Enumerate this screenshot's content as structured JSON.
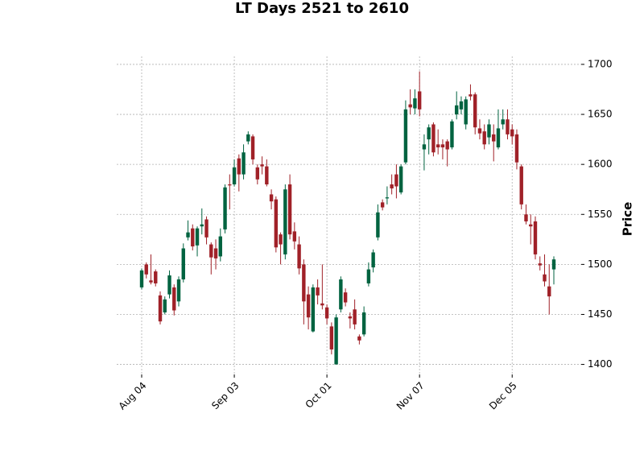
{
  "chart_data": {
    "type": "candlestick",
    "title": "LT Days 2521 to 2610",
    "ylabel": "Price",
    "categories": [
      "Aug 04",
      null,
      null,
      null,
      null,
      null,
      null,
      null,
      null,
      null,
      null,
      null,
      null,
      null,
      null,
      null,
      null,
      null,
      null,
      null,
      "Sep 03",
      null,
      null,
      null,
      null,
      null,
      null,
      null,
      null,
      null,
      null,
      null,
      null,
      null,
      null,
      null,
      null,
      null,
      null,
      null,
      "Oct 01",
      null,
      null,
      null,
      null,
      null,
      null,
      null,
      null,
      null,
      null,
      null,
      null,
      null,
      null,
      null,
      null,
      null,
      null,
      null,
      "Nov 07",
      null,
      null,
      null,
      null,
      null,
      null,
      null,
      null,
      null,
      null,
      null,
      null,
      null,
      null,
      null,
      null,
      null,
      null,
      null,
      "Dec 05",
      null,
      null,
      null,
      null,
      null,
      null,
      null,
      null,
      null
    ],
    "open": [
      1477,
      1500,
      1484,
      1493,
      1469,
      1452,
      1470,
      1477,
      1463,
      1485,
      1527,
      1536,
      1519,
      1538,
      1545,
      1520,
      1516,
      1508,
      1535,
      1580,
      1580,
      1606,
      1590,
      1623,
      1628,
      1597,
      1600,
      1598,
      1570,
      1565,
      1530,
      1510,
      1580,
      1533,
      1520,
      1500,
      1470,
      1433,
      1477,
      1461,
      1457,
      1438,
      1400,
      1455,
      1472,
      1448,
      1455,
      1428,
      1430,
      1481,
      1497,
      1527,
      1562,
      1566,
      1580,
      1590,
      1572,
      1602,
      1660,
      1656,
      1673,
      1615,
      1625,
      1640,
      1620,
      1620,
      1623,
      1617,
      1650,
      1655,
      1640,
      1670,
      1670,
      1636,
      1633,
      1627,
      1630,
      1617,
      1640,
      1645,
      1635,
      1630,
      1598,
      1550,
      1540,
      1543,
      1501,
      1490,
      1478,
      1495
    ],
    "high": [
      1496,
      1502,
      1510,
      1495,
      1473,
      1468,
      1494,
      1480,
      1488,
      1521,
      1544,
      1540,
      1538,
      1556,
      1548,
      1522,
      1525,
      1536,
      1580,
      1590,
      1605,
      1610,
      1620,
      1633,
      1630,
      1600,
      1608,
      1605,
      1575,
      1568,
      1532,
      1580,
      1590,
      1542,
      1528,
      1505,
      1478,
      1480,
      1485,
      1500,
      1460,
      1442,
      1450,
      1488,
      1476,
      1452,
      1465,
      1430,
      1458,
      1502,
      1515,
      1560,
      1565,
      1578,
      1590,
      1600,
      1600,
      1664,
      1675,
      1675,
      1693,
      1630,
      1640,
      1642,
      1635,
      1625,
      1625,
      1645,
      1673,
      1668,
      1668,
      1680,
      1672,
      1645,
      1640,
      1645,
      1640,
      1655,
      1655,
      1655,
      1640,
      1635,
      1600,
      1560,
      1550,
      1548,
      1508,
      1510,
      1500,
      1508
    ],
    "low": [
      1475,
      1486,
      1480,
      1478,
      1440,
      1450,
      1466,
      1449,
      1458,
      1482,
      1524,
      1514,
      1508,
      1530,
      1520,
      1490,
      1495,
      1503,
      1531,
      1555,
      1578,
      1573,
      1585,
      1620,
      1600,
      1580,
      1590,
      1578,
      1555,
      1512,
      1500,
      1505,
      1525,
      1515,
      1490,
      1440,
      1435,
      1432,
      1460,
      1455,
      1440,
      1410,
      1400,
      1452,
      1458,
      1436,
      1435,
      1420,
      1428,
      1478,
      1492,
      1524,
      1554,
      1560,
      1570,
      1566,
      1570,
      1600,
      1650,
      1650,
      1648,
      1594,
      1610,
      1608,
      1610,
      1605,
      1598,
      1615,
      1645,
      1650,
      1635,
      1664,
      1630,
      1625,
      1615,
      1620,
      1603,
      1615,
      1635,
      1625,
      1620,
      1595,
      1555,
      1540,
      1520,
      1505,
      1494,
      1478,
      1450,
      1480
    ],
    "close": [
      1494,
      1490,
      1482,
      1481,
      1443,
      1465,
      1489,
      1454,
      1485,
      1516,
      1532,
      1518,
      1536,
      1540,
      1527,
      1507,
      1506,
      1528,
      1577,
      1579,
      1597,
      1590,
      1612,
      1630,
      1605,
      1585,
      1598,
      1580,
      1563,
      1517,
      1520,
      1575,
      1530,
      1523,
      1496,
      1463,
      1447,
      1477,
      1469,
      1459,
      1446,
      1415,
      1447,
      1485,
      1462,
      1446,
      1440,
      1424,
      1452,
      1495,
      1512,
      1552,
      1557,
      1567,
      1576,
      1578,
      1598,
      1655,
      1657,
      1666,
      1655,
      1620,
      1637,
      1612,
      1617,
      1617,
      1615,
      1643,
      1659,
      1663,
      1665,
      1668,
      1637,
      1631,
      1620,
      1640,
      1623,
      1636,
      1645,
      1630,
      1628,
      1602,
      1560,
      1543,
      1538,
      1510,
      1499,
      1483,
      1468,
      1505
    ],
    "up_color": "#006340",
    "down_color": "#a02128",
    "ylim": [
      1390,
      1708
    ],
    "yticks": [
      1400,
      1450,
      1500,
      1550,
      1600,
      1650,
      1700
    ],
    "grid": true
  }
}
